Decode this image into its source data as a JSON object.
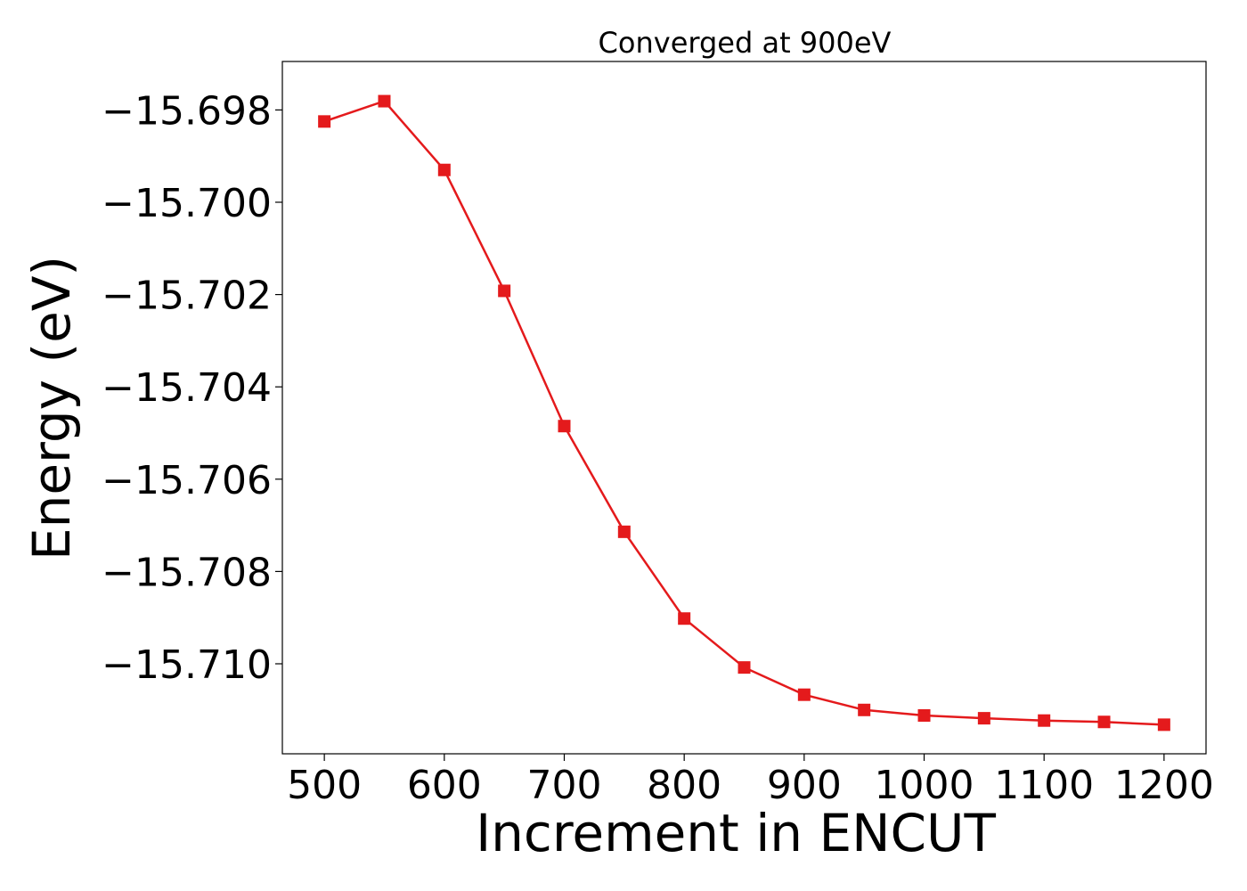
{
  "chart_data": {
    "type": "line",
    "title": "Converged at 900eV",
    "xlabel": "Increment in ENCUT",
    "ylabel": "Energy (eV)",
    "xlim": [
      465,
      1235
    ],
    "ylim": [
      -15.71195,
      -15.69695
    ],
    "x_ticks": [
      500,
      600,
      700,
      800,
      900,
      1000,
      1100,
      1200
    ],
    "y_ticks": [
      -15.698,
      -15.7,
      -15.702,
      -15.704,
      -15.706,
      -15.708,
      -15.71
    ],
    "x_tick_labels": [
      "500",
      "600",
      "700",
      "800",
      "900",
      "1000",
      "1100",
      "1200"
    ],
    "y_tick_labels": [
      "−15.698",
      "−15.700",
      "−15.702",
      "−15.704",
      "−15.706",
      "−15.708",
      "−15.710"
    ],
    "grid": false,
    "marker": "square",
    "color": "#e41a1c",
    "series": [
      {
        "x": [
          500,
          550,
          600,
          650,
          700,
          750,
          800,
          850,
          900,
          950,
          1000,
          1050,
          1100,
          1150,
          1200
        ],
        "y": [
          -15.69825,
          -15.69781,
          -15.6993,
          -15.70192,
          -15.70485,
          -15.70714,
          -15.70902,
          -15.71008,
          -15.71067,
          -15.711,
          -15.71112,
          -15.71118,
          -15.71123,
          -15.71126,
          -15.71132
        ]
      }
    ]
  }
}
